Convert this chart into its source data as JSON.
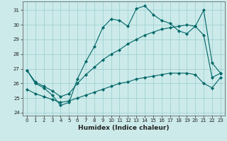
{
  "xlabel": "Humidex (Indice chaleur)",
  "background_color": "#cceaea",
  "grid_color": "#99cccc",
  "line_color": "#006666",
  "xlim": [
    -0.5,
    23.5
  ],
  "ylim": [
    23.8,
    31.6
  ],
  "yticks": [
    24,
    25,
    26,
    27,
    28,
    29,
    30,
    31
  ],
  "xticks": [
    0,
    1,
    2,
    3,
    4,
    5,
    6,
    7,
    8,
    9,
    10,
    11,
    12,
    13,
    14,
    15,
    16,
    17,
    18,
    19,
    20,
    21,
    22,
    23
  ],
  "series1_x": [
    0,
    1,
    2,
    3,
    4,
    5,
    6,
    7,
    8,
    9,
    10,
    11,
    12,
    13,
    14,
    15,
    16,
    17,
    18,
    19,
    20,
    21,
    22,
    23
  ],
  "series1_y": [
    26.9,
    26.0,
    25.7,
    25.2,
    24.5,
    24.7,
    26.3,
    27.5,
    28.5,
    29.8,
    30.4,
    30.3,
    29.9,
    31.1,
    31.3,
    30.7,
    30.3,
    30.1,
    29.6,
    29.4,
    29.9,
    31.0,
    27.4,
    26.7
  ],
  "series2_x": [
    0,
    1,
    2,
    3,
    4,
    5,
    6,
    7,
    8,
    9,
    10,
    11,
    12,
    13,
    14,
    15,
    16,
    17,
    18,
    19,
    20,
    21,
    22,
    23
  ],
  "series2_y": [
    26.9,
    26.1,
    25.8,
    25.5,
    25.1,
    25.3,
    26.0,
    26.6,
    27.1,
    27.6,
    28.0,
    28.3,
    28.7,
    29.0,
    29.3,
    29.5,
    29.7,
    29.8,
    29.9,
    30.0,
    29.9,
    29.3,
    26.4,
    26.7
  ],
  "series3_x": [
    0,
    1,
    2,
    3,
    4,
    5,
    6,
    7,
    8,
    9,
    10,
    11,
    12,
    13,
    14,
    15,
    16,
    17,
    18,
    19,
    20,
    21,
    22,
    23
  ],
  "series3_y": [
    25.6,
    25.3,
    25.1,
    24.9,
    24.7,
    24.8,
    25.0,
    25.2,
    25.4,
    25.6,
    25.8,
    26.0,
    26.1,
    26.3,
    26.4,
    26.5,
    26.6,
    26.7,
    26.7,
    26.7,
    26.6,
    26.0,
    25.7,
    26.4
  ]
}
